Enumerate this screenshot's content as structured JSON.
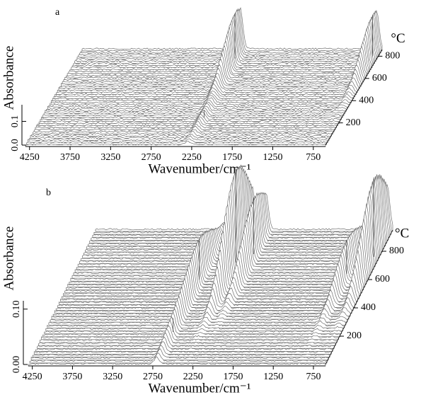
{
  "chart_data": [
    {
      "type": "waterfall",
      "title": "a",
      "xlabel": "Wavenumber/cm⁻¹",
      "ylabel": "Absorbance",
      "tlabel": "°C",
      "xlim": [
        4300,
        600
      ],
      "xticks": [
        4250,
        3750,
        3250,
        2750,
        2250,
        1750,
        1250,
        750
      ],
      "ylim": [
        0,
        0.17
      ],
      "yticks": [
        {
          "value": 0,
          "label": "0.0"
        },
        0.1
      ],
      "tlim": [
        0,
        860
      ],
      "tticks": [
        200,
        400,
        600,
        800
      ],
      "peaks": [
        {
          "wavenumber": 2350,
          "temperature": 780,
          "absorbance": 0.19
        },
        {
          "wavenumber": 2300,
          "temperature": 250,
          "absorbance": 0.03
        },
        {
          "wavenumber": 670,
          "temperature": 800,
          "absorbance": 0.17
        }
      ]
    },
    {
      "type": "waterfall",
      "title": "b",
      "xlabel": "Wavenumber/cm⁻¹",
      "ylabel": "Absorbance",
      "tlabel": "°C",
      "xlim": [
        4300,
        600
      ],
      "xticks": [
        4250,
        3750,
        3250,
        2750,
        2250,
        1750,
        1250,
        750
      ],
      "ylim": [
        0,
        0.115
      ],
      "yticks": [
        {
          "value": 0,
          "label": "0.00"
        },
        {
          "value": 0.1,
          "label": "0.10"
        }
      ],
      "tlim": [
        0,
        950
      ],
      "tticks": [
        200,
        400,
        600,
        800
      ],
      "peaks": [
        {
          "wavenumber": 2350,
          "temperature": 720,
          "absorbance": 0.17
        },
        {
          "wavenumber": 2180,
          "temperature": 780,
          "absorbance": 0.1
        },
        {
          "wavenumber": 2700,
          "temperature": 600,
          "absorbance": 0.07
        },
        {
          "wavenumber": 2700,
          "temperature": 230,
          "absorbance": 0.025
        },
        {
          "wavenumber": 670,
          "temperature": 760,
          "absorbance": 0.14
        },
        {
          "wavenumber": 900,
          "temperature": 640,
          "absorbance": 0.06
        }
      ]
    }
  ]
}
